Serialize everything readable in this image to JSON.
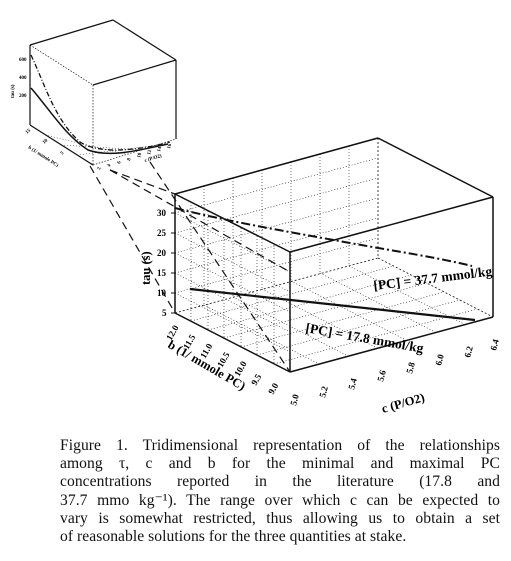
{
  "figure": {
    "small_plot": {
      "y_label": "tau (s)",
      "y_ticks": [
        "600",
        "400",
        "200"
      ],
      "b_label": "b (1/ mmole PC)",
      "b_ticks": [
        "15",
        "10",
        "5"
      ],
      "c_label": "c (P/O2)",
      "c_ticks": [
        "2",
        "4",
        "6",
        "8",
        "10",
        "12",
        "14",
        "16"
      ]
    },
    "large_plot": {
      "y_label": "tau (s)",
      "y_ticks": [
        "5",
        "10",
        "15",
        "20",
        "25",
        "30"
      ],
      "b_label": "b (1/ mmole PC)",
      "b_ticks": [
        "12.0",
        "11.5",
        "11.0",
        "10.5",
        "10.0",
        "9.5",
        "9.0"
      ],
      "c_label": "c (P/O2)",
      "c_ticks": [
        "5.0",
        "5.2",
        "5.4",
        "5.6",
        "5.8",
        "6.0",
        "6.2",
        "6.4"
      ],
      "curve_labels": {
        "high": "[PC] = 37.7 mmol/kg",
        "low": "[PC] = 17.8 mmol/kg"
      }
    }
  },
  "caption": {
    "line1": "Figure 1. Tridimensional representation of the relationships",
    "line2": "among τ, c and b for the minimal and maximal PC",
    "line3": "concentrations reported in the literature (17.8 and",
    "line4": "37.7 mmo kg⁻¹). The range over which c can be expected to",
    "line5": "vary is somewhat restricted, thus allowing us to obtain a set",
    "line6": "of reasonable solutions for the three quantities at stake."
  }
}
